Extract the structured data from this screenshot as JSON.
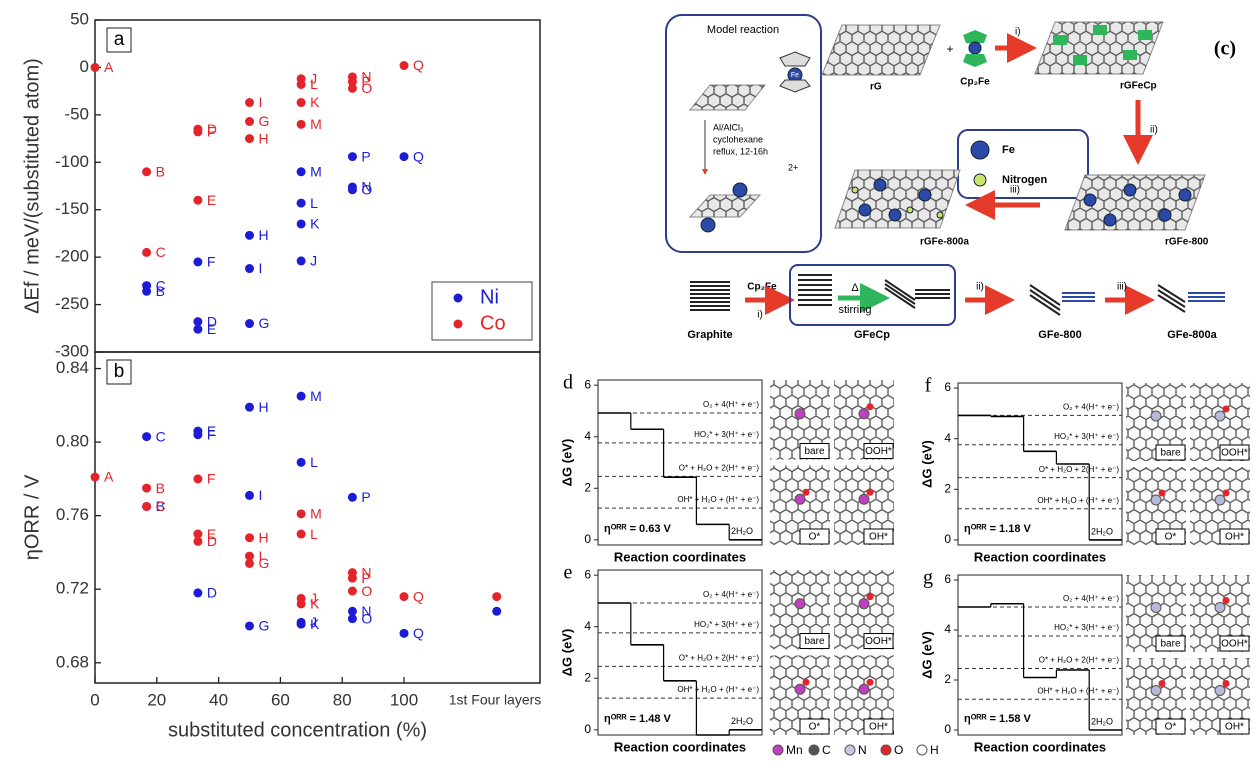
{
  "chart_data": [
    {
      "type": "scatter",
      "panel": "a",
      "ylabel": "ΔEf / meV/(substituted atom)",
      "xlim": [
        0,
        144
      ],
      "ylim": [
        -300,
        50
      ],
      "yticks": [
        -300,
        -250,
        -200,
        -150,
        -100,
        -50,
        0,
        50
      ],
      "legend": "lower right",
      "series": [
        {
          "name": "Ni",
          "color": "#1c1cd6",
          "x": [
            16.7,
            16.7,
            33.3,
            33.3,
            33.3,
            50,
            50,
            50,
            66.7,
            66.7,
            66.7,
            66.7,
            83.3,
            83.3,
            83.3,
            100
          ],
          "values": [
            -236,
            -230,
            -268,
            -276,
            -205,
            -270,
            -177,
            -212,
            -204,
            -165,
            -143,
            -110,
            -126,
            -129,
            -94,
            -94
          ],
          "labels": [
            "B",
            "C",
            "D",
            "E",
            "F",
            "G",
            "H",
            "I",
            "J",
            "K",
            "L",
            "M",
            "N",
            "O",
            "P",
            "Q"
          ]
        },
        {
          "name": "Co",
          "color": "#e3242b",
          "x": [
            0,
            16.7,
            16.7,
            33.3,
            33.3,
            33.3,
            50,
            50,
            50,
            66.7,
            66.7,
            66.7,
            66.7,
            83.3,
            83.3,
            83.3,
            100
          ],
          "values": [
            0,
            -110,
            -195,
            -65,
            -140,
            -68,
            -57,
            -75,
            -37,
            -12,
            -37,
            -18,
            -60,
            -10,
            -22,
            -15,
            2
          ],
          "labels": [
            "A",
            "B",
            "C",
            "D",
            "E",
            "F",
            "G",
            "H",
            "I",
            "J",
            "K",
            "L",
            "M",
            "N",
            "O",
            "P",
            "Q"
          ]
        }
      ]
    },
    {
      "type": "scatter",
      "panel": "b",
      "ylabel": "ηORR / V",
      "xlabel": "substituted concentration (%)",
      "annotation": "1st Four layers",
      "xlim": [
        0,
        144
      ],
      "xticks": [
        0,
        20,
        40,
        60,
        80,
        100
      ],
      "ylim": [
        0.669,
        0.849
      ],
      "yticks": [
        0.68,
        0.72,
        0.76,
        {
          "value": 0.8,
          "label": "0.80"
        },
        0.84
      ],
      "series": [
        {
          "name": "Ni",
          "color": "#1c1cd6",
          "x": [
            16.7,
            16.7,
            33.3,
            33.3,
            33.3,
            50,
            50,
            50,
            66.7,
            66.7,
            66.7,
            66.7,
            83.3,
            83.3,
            83.3,
            100,
            130
          ],
          "values": [
            0.765,
            0.803,
            0.718,
            0.806,
            0.804,
            0.7,
            0.819,
            0.771,
            0.702,
            0.701,
            0.789,
            0.825,
            0.708,
            0.704,
            0.77,
            0.696,
            0.708
          ],
          "labels": [
            "B",
            "C",
            "D",
            "E",
            "F",
            "G",
            "H",
            "I",
            "J",
            "K",
            "L",
            "M",
            "N",
            "O",
            "P",
            "Q",
            null
          ]
        },
        {
          "name": "Co",
          "color": "#e3242b",
          "x": [
            0,
            16.7,
            16.7,
            33.3,
            33.3,
            33.3,
            50,
            50,
            50,
            66.7,
            66.7,
            66.7,
            66.7,
            83.3,
            83.3,
            83.3,
            100,
            130
          ],
          "values": [
            0.781,
            0.775,
            0.765,
            0.746,
            0.75,
            0.78,
            0.734,
            0.748,
            0.738,
            0.715,
            0.712,
            0.75,
            0.761,
            0.729,
            0.719,
            0.726,
            0.716,
            0.716
          ],
          "labels": [
            "A",
            "B",
            "C",
            "D",
            "E",
            "F",
            "G",
            "H",
            "I",
            "J",
            "K",
            "L",
            "M",
            "N",
            "O",
            "P",
            "Q",
            null
          ]
        }
      ]
    },
    {
      "type": "step",
      "panel": "d",
      "ylabel": "ΔG (eV)",
      "xlabel": "Reaction coordinates",
      "ylim": [
        -0.2,
        6.2
      ],
      "yticks": [
        0,
        2,
        4,
        6
      ],
      "values": [
        4.92,
        4.29,
        2.43,
        0.6,
        0
      ],
      "color": "#000000",
      "levels": {
        "values": [
          4.92,
          3.76,
          2.46,
          1.23
        ],
        "labels": [
          "O₂ + 4(H⁺ + e⁻)",
          "HO₂* + 3(H⁺ + e⁻)",
          "O* + H₂O + 2(H⁺ + e⁻)",
          "OH* + H₂O + (H⁺ + e⁻)"
        ]
      },
      "product": "2H₂O",
      "eta": "ηᴼᴿᴿ = 0.63 V",
      "structure_labels": [
        "bare",
        "OOH*",
        "O*",
        "OH*"
      ],
      "dopant_color": "#c13fc1"
    },
    {
      "type": "step",
      "panel": "e",
      "ylabel": "ΔG (eV)",
      "xlabel": "Reaction coordinates",
      "ylim": [
        -0.2,
        6.2
      ],
      "yticks": [
        0,
        2,
        4,
        6
      ],
      "values": [
        4.92,
        3.3,
        1.9,
        -0.2,
        0
      ],
      "color": "#000000",
      "levels": {
        "values": [
          4.92,
          3.76,
          2.46,
          1.23
        ],
        "labels": [
          "O₂ + 4(H⁺ + e⁻)",
          "HO₂* + 3(H⁺ + e⁻)",
          "O* + H₂O + 2(H⁺ + e⁻)",
          "OH* + H₂O + (H⁺ + e⁻)"
        ]
      },
      "product": "2H₂O",
      "eta": "ηᴼᴿᴿ = 1.48 V",
      "structure_labels": [
        "bare",
        "OOH*",
        "O*",
        "OH*"
      ],
      "dopant_color": "#c13fc1"
    },
    {
      "type": "step",
      "panel": "f",
      "ylabel": "ΔG (eV)",
      "xlabel": "Reaction coordinates",
      "ylim": [
        -0.2,
        6.2
      ],
      "yticks": [
        0,
        2,
        4,
        6
      ],
      "values": [
        4.92,
        4.88,
        3.5,
        3.0,
        0
      ],
      "color": "#000000",
      "levels": {
        "values": [
          4.92,
          3.76,
          2.46,
          1.23
        ],
        "labels": [
          "O₂ + 4(H⁺ + e⁻)",
          "HO₂* + 3(H⁺ + e⁻)",
          "O* + H₂O + 2(H⁺ + e⁻)",
          "OH* + H₂O + (H⁺ + e⁻)"
        ]
      },
      "product": "2H₂O",
      "eta": "ηᴼᴿᴿ = 1.18 V",
      "structure_labels": [
        "bare",
        "OOH*",
        "O*",
        "OH*"
      ],
      "dopant_color": "#b8b8d8"
    },
    {
      "type": "step",
      "panel": "g",
      "ylabel": "ΔG (eV)",
      "xlabel": "Reaction coordinates",
      "ylim": [
        -0.2,
        6.2
      ],
      "yticks": [
        0,
        2,
        4,
        6
      ],
      "values": [
        4.92,
        5.05,
        2.1,
        2.4,
        0
      ],
      "color": "#000000",
      "levels": {
        "values": [
          4.92,
          3.76,
          2.46,
          1.23
        ],
        "labels": [
          "O₂ + 4(H⁺ + e⁻)",
          "HO₂* + 3(H⁺ + e⁻)",
          "O* + H₂O + 2(H⁺ + e⁻)",
          "OH* + H₂O + (H⁺ + e⁻)"
        ]
      },
      "product": "2H₂O",
      "eta": "ηᴼᴿᴿ = 1.58 V",
      "structure_labels": [
        "bare",
        "OOH*",
        "O*",
        "OH*"
      ],
      "dopant_color": "#b8b8d8"
    }
  ],
  "atom_legend": {
    "names": [
      "Mn",
      "C",
      "N",
      "O",
      "H"
    ],
    "colors": [
      "#c13fc1",
      "#555555",
      "#c8c8e0",
      "#e3242b",
      "#ffffff"
    ]
  },
  "scheme": {
    "label": "(c)",
    "model_title": "Model reaction",
    "conditions": [
      "Al/AlCl₃",
      "cyclohexane",
      "reflux, 12-16h"
    ],
    "charge": "2+",
    "fe": "Fe",
    "top": {
      "rg": "rG",
      "plus": "+",
      "reagent": "Cp₂Fe",
      "step1": "i)",
      "rgfecp": "rGFeCp",
      "step2": "ii)",
      "rgfe800": "rGFe-800",
      "step3": "iii)",
      "rgfe800a": "rGFe-800a"
    },
    "legend": {
      "fe": "Fe",
      "n": "Nitrogen"
    },
    "bottom": {
      "graphite": "Graphite",
      "reagent": "Cp₂Fe",
      "step1": "i)",
      "delta": "Δ",
      "stirring": "stirring",
      "gfecp": "GFeCp",
      "step2": "ii)",
      "gfe800": "GFe-800",
      "step3": "iii)",
      "gfe800a": "GFe-800a"
    }
  }
}
